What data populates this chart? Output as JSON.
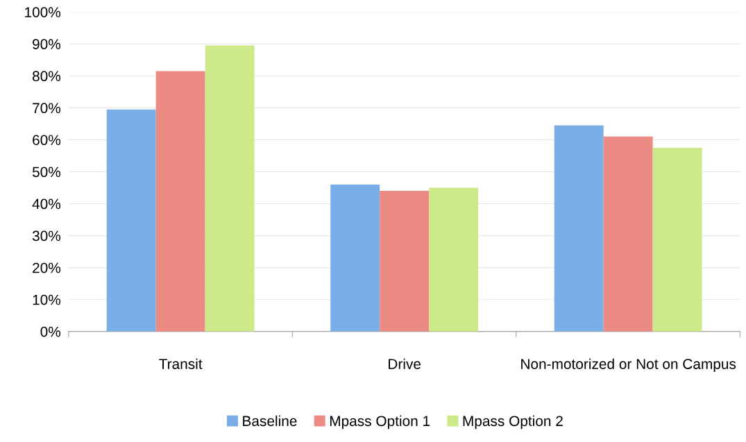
{
  "chart_data": {
    "type": "bar",
    "categories": [
      "Transit",
      "Drive",
      "Non-motorized or Not on Campus"
    ],
    "series": [
      {
        "name": "Baseline",
        "color": "#7aaee8",
        "values": [
          69.5,
          46,
          64.5
        ]
      },
      {
        "name": "Mpass Option 1",
        "color": "#ec8a84",
        "values": [
          81.5,
          44,
          61
        ]
      },
      {
        "name": "Mpass Option 2",
        "color": "#cde98a",
        "values": [
          89.5,
          45,
          57.5
        ]
      }
    ],
    "ylim": [
      0,
      100
    ],
    "yticks": [
      {
        "value": 0,
        "label": "0%"
      },
      {
        "value": 10,
        "label": "10%"
      },
      {
        "value": 20,
        "label": "20%"
      },
      {
        "value": 30,
        "label": "30%"
      },
      {
        "value": 40,
        "label": "40%"
      },
      {
        "value": 50,
        "label": "50%"
      },
      {
        "value": 60,
        "label": "60%"
      },
      {
        "value": 70,
        "label": "70%"
      },
      {
        "value": 80,
        "label": "80%"
      },
      {
        "value": 90,
        "label": "90%"
      },
      {
        "value": 100,
        "label": "100%"
      }
    ],
    "grid": "y",
    "legend": "bottom"
  }
}
